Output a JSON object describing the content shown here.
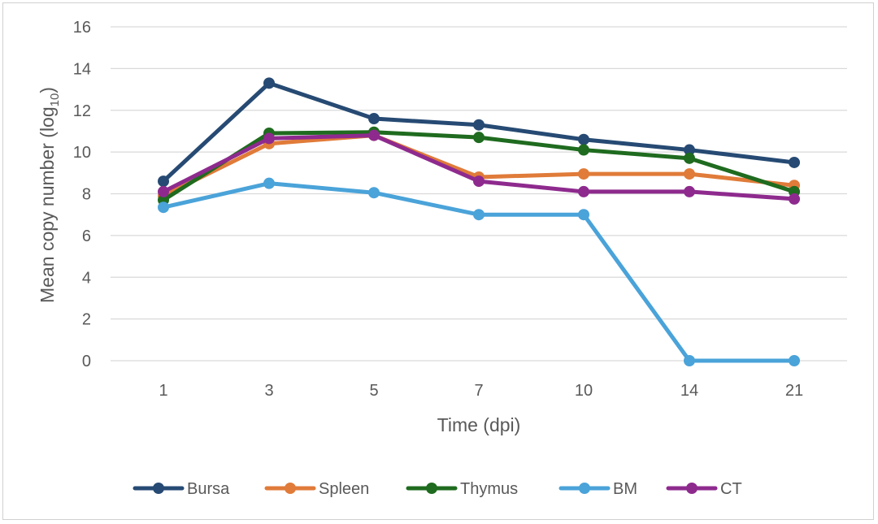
{
  "chart_data": {
    "type": "line",
    "title": "",
    "xlabel": "Time (dpi)",
    "ylabel_main": "Mean copy number (log",
    "ylabel_sub": "10",
    "ylabel_close": ")",
    "categories": [
      "1",
      "3",
      "5",
      "7",
      "10",
      "14",
      "21"
    ],
    "ylim": [
      0,
      16
    ],
    "yticks": [
      "0",
      "2",
      "4",
      "6",
      "8",
      "10",
      "12",
      "14",
      "16"
    ],
    "grid": true,
    "legend_position": "bottom",
    "series": [
      {
        "name": "Bursa",
        "color": "#264a73",
        "values": [
          8.6,
          13.3,
          11.6,
          11.3,
          10.6,
          10.1,
          9.5
        ]
      },
      {
        "name": "Spleen",
        "color": "#e07b39",
        "values": [
          7.9,
          10.4,
          10.8,
          8.8,
          8.95,
          8.95,
          8.4
        ]
      },
      {
        "name": "Thymus",
        "color": "#1f6b1f",
        "values": [
          7.7,
          10.9,
          10.95,
          10.7,
          10.1,
          9.7,
          8.1
        ]
      },
      {
        "name": "BM",
        "color": "#4aa3d9",
        "values": [
          7.35,
          8.5,
          8.05,
          7.0,
          7.0,
          0.0,
          0.0
        ]
      },
      {
        "name": "CT",
        "color": "#8e2a8e",
        "values": [
          8.1,
          10.65,
          10.8,
          8.6,
          8.1,
          8.1,
          7.75
        ]
      }
    ]
  }
}
